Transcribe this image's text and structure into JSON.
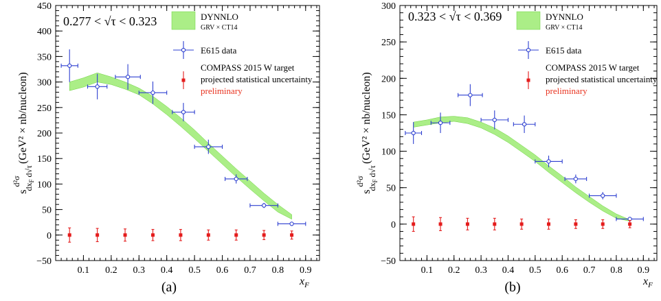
{
  "chart_data": [
    {
      "type": "scatter",
      "panel_label": "(a)",
      "corner_label": "0.277 < √τ < 0.323",
      "xlabel": "x_F",
      "ylabel": "s d²σ / (dx_F d√τ) (GeV² × nb/nucleon)",
      "xlim": [
        0,
        0.95
      ],
      "ylim": [
        -50,
        450
      ],
      "xticks": [
        "0.1",
        "0.2",
        "0.3",
        "0.4",
        "0.5",
        "0.6",
        "0.7",
        "0.8",
        "0.9"
      ],
      "yticks": [
        "−50",
        "0",
        "50",
        "100",
        "150",
        "200",
        "250",
        "300",
        "350",
        "400",
        "450"
      ],
      "legend": {
        "band_label": "DYNNLO",
        "band_sublabel": "GRV × CT14",
        "e615_label": "E615 data",
        "compass_label": "COMPASS 2015   W target",
        "compass_sublabel": "projected statistical uncertainty",
        "compass_note": "preliminary"
      },
      "band": {
        "x": [
          0.05,
          0.1,
          0.15,
          0.2,
          0.25,
          0.3,
          0.35,
          0.4,
          0.45,
          0.5,
          0.55,
          0.6,
          0.65,
          0.7,
          0.75,
          0.8,
          0.85
        ],
        "upper": [
          300,
          308,
          318,
          310,
          300,
          288,
          272,
          252,
          230,
          206,
          180,
          155,
          130,
          106,
          82,
          60,
          40
        ],
        "lower": [
          283,
          290,
          300,
          295,
          286,
          275,
          257,
          236,
          213,
          189,
          164,
          139,
          114,
          90,
          67,
          45,
          31
        ]
      },
      "e615": [
        {
          "x": 0.05,
          "y": 332,
          "xerr": 0.03,
          "yerr": 32
        },
        {
          "x": 0.15,
          "y": 291,
          "xerr": 0.035,
          "yerr": 25
        },
        {
          "x": 0.26,
          "y": 310,
          "xerr": 0.045,
          "yerr": 25
        },
        {
          "x": 0.35,
          "y": 279,
          "xerr": 0.05,
          "yerr": 22
        },
        {
          "x": 0.46,
          "y": 241,
          "xerr": 0.04,
          "yerr": 18
        },
        {
          "x": 0.55,
          "y": 173,
          "xerr": 0.05,
          "yerr": 14
        },
        {
          "x": 0.65,
          "y": 110,
          "xerr": 0.04,
          "yerr": 9
        },
        {
          "x": 0.75,
          "y": 58,
          "xerr": 0.05,
          "yerr": 5
        },
        {
          "x": 0.85,
          "y": 22,
          "xerr": 0.05,
          "yerr": 2
        }
      ],
      "compass": [
        {
          "x": 0.05,
          "y": 0,
          "yerr": 14
        },
        {
          "x": 0.15,
          "y": 0,
          "yerr": 13
        },
        {
          "x": 0.25,
          "y": 0,
          "yerr": 12
        },
        {
          "x": 0.35,
          "y": 0,
          "yerr": 11
        },
        {
          "x": 0.45,
          "y": 0,
          "yerr": 11
        },
        {
          "x": 0.55,
          "y": 0,
          "yerr": 10
        },
        {
          "x": 0.65,
          "y": 0,
          "yerr": 10
        },
        {
          "x": 0.75,
          "y": 0,
          "yerr": 9
        },
        {
          "x": 0.85,
          "y": 0,
          "yerr": 8
        }
      ]
    },
    {
      "type": "scatter",
      "panel_label": "(b)",
      "corner_label": "0.323 < √τ < 0.369",
      "xlabel": "x_F",
      "ylabel": "s d²σ / (dx_F d√τ) (GeV² × nb/nucleon)",
      "xlim": [
        0,
        0.95
      ],
      "ylim": [
        -50,
        300
      ],
      "xticks": [
        "0.1",
        "0.2",
        "0.3",
        "0.4",
        "0.5",
        "0.6",
        "0.7",
        "0.8",
        "0.9"
      ],
      "yticks": [
        "−50",
        "0",
        "50",
        "100",
        "150",
        "200",
        "250",
        "300"
      ],
      "legend": {
        "band_label": "DYNNLO",
        "band_sublabel": "GRV × CT14",
        "e615_label": "E615 data",
        "compass_label": "COMPASS 2015   W target",
        "compass_sublabel": "projected statistical uncertainty",
        "compass_note": "preliminary"
      },
      "band": {
        "x": [
          0.05,
          0.1,
          0.15,
          0.2,
          0.25,
          0.3,
          0.35,
          0.4,
          0.45,
          0.5,
          0.55,
          0.6,
          0.65,
          0.7,
          0.75,
          0.8,
          0.85
        ],
        "upper": [
          140,
          143,
          147,
          148,
          146,
          140,
          132,
          121,
          108,
          95,
          80,
          66,
          51,
          38,
          25,
          14,
          6
        ],
        "lower": [
          133,
          136,
          139,
          141,
          138,
          132,
          123,
          112,
          99,
          86,
          71,
          57,
          43,
          30,
          18,
          8,
          4
        ]
      },
      "e615": [
        {
          "x": 0.05,
          "y": 125,
          "xerr": 0.03,
          "yerr": 15
        },
        {
          "x": 0.15,
          "y": 139,
          "xerr": 0.035,
          "yerr": 14
        },
        {
          "x": 0.26,
          "y": 177,
          "xerr": 0.045,
          "yerr": 15
        },
        {
          "x": 0.35,
          "y": 143,
          "xerr": 0.05,
          "yerr": 13
        },
        {
          "x": 0.46,
          "y": 137,
          "xerr": 0.04,
          "yerr": 12
        },
        {
          "x": 0.55,
          "y": 86,
          "xerr": 0.05,
          "yerr": 8
        },
        {
          "x": 0.65,
          "y": 62,
          "xerr": 0.04,
          "yerr": 6
        },
        {
          "x": 0.75,
          "y": 39,
          "xerr": 0.05,
          "yerr": 5
        },
        {
          "x": 0.85,
          "y": 7,
          "xerr": 0.05,
          "yerr": 2
        }
      ],
      "compass": [
        {
          "x": 0.05,
          "y": 0,
          "yerr": 10
        },
        {
          "x": 0.15,
          "y": 0,
          "yerr": 9
        },
        {
          "x": 0.25,
          "y": 0,
          "yerr": 8
        },
        {
          "x": 0.35,
          "y": 0,
          "yerr": 8
        },
        {
          "x": 0.45,
          "y": 0,
          "yerr": 7
        },
        {
          "x": 0.55,
          "y": 0,
          "yerr": 7
        },
        {
          "x": 0.65,
          "y": 0,
          "yerr": 6
        },
        {
          "x": 0.75,
          "y": 0,
          "yerr": 6
        },
        {
          "x": 0.85,
          "y": 0,
          "yerr": 5
        }
      ]
    }
  ]
}
